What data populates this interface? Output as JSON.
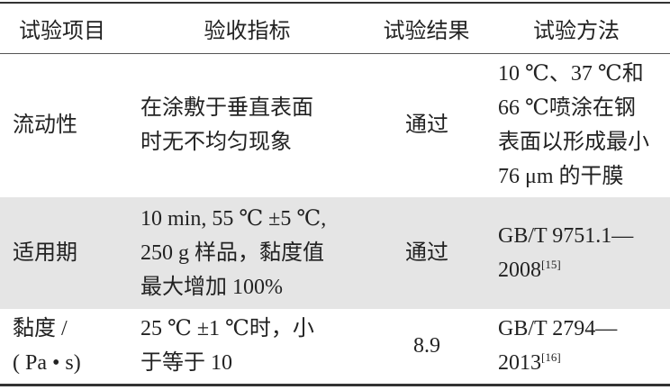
{
  "headers": [
    "试验项目",
    "验收指标",
    "试验结果",
    "试验方法"
  ],
  "rows": [
    {
      "item": [
        "流动性"
      ],
      "criteria": [
        "在涂敷于垂直表面",
        "时无不均匀现象"
      ],
      "result": "通过",
      "method": [
        "10 ℃、37 ℃和",
        "66 ℃喷涂在钢",
        "表面以形成最小",
        "76 μm 的干膜"
      ],
      "method_ref": ""
    },
    {
      "item": [
        "适用期"
      ],
      "criteria": [
        "10 min, 55 ℃ ±5 ℃,",
        "250 g 样品，黏度值",
        "最大增加 100%"
      ],
      "result": "通过",
      "method": [
        "GB/T 9751.1—",
        "2008"
      ],
      "method_ref": "[15]"
    },
    {
      "item": [
        "黏度 /",
        "( Pa • s)"
      ],
      "criteria": [
        "25 ℃ ±1 ℃时，小",
        "于等于 10"
      ],
      "result": "8.9",
      "method": [
        "GB/T 2794—",
        "2013"
      ],
      "method_ref": "[16]"
    }
  ]
}
